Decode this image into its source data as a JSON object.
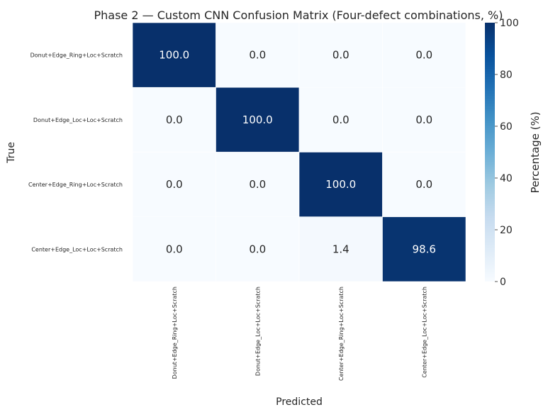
{
  "chart_data": {
    "type": "heatmap",
    "title": "Phase 2 — Custom CNN Confusion Matrix (Four-defect combinations, %)",
    "xlabel": "Predicted",
    "ylabel": "True",
    "x_categories": [
      "Donut+Edge_Ring+Loc+Scratch",
      "Donut+Edge_Loc+Loc+Scratch",
      "Center+Edge_Ring+Loc+Scratch",
      "Center+Edge_Loc+Loc+Scratch"
    ],
    "y_categories": [
      "Donut+Edge_Ring+Loc+Scratch",
      "Donut+Edge_Loc+Loc+Scratch",
      "Center+Edge_Ring+Loc+Scratch",
      "Center+Edge_Loc+Loc+Scratch"
    ],
    "values": [
      [
        100.0,
        0.0,
        0.0,
        0.0
      ],
      [
        0.0,
        100.0,
        0.0,
        0.0
      ],
      [
        0.0,
        0.0,
        100.0,
        0.0
      ],
      [
        0.0,
        0.0,
        1.4,
        98.6
      ]
    ],
    "colormap": "Blues",
    "colorbar": {
      "label": "Percentage (%)",
      "range": [
        0,
        100
      ],
      "ticks": [
        "0",
        "20",
        "40",
        "60",
        "80",
        "100"
      ]
    }
  }
}
